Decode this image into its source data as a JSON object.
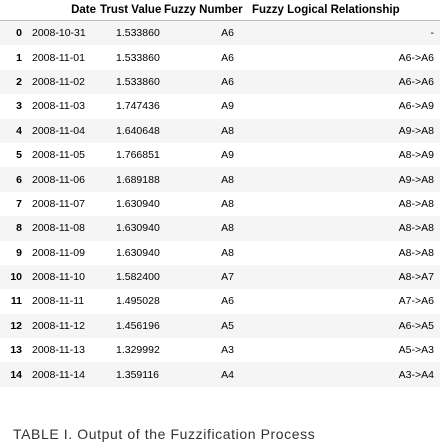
{
  "table": {
    "headers": [
      "",
      "Date",
      "Trust Value",
      "Fuzzy Number",
      "Fuzzy Logical Relationship"
    ],
    "rows": [
      {
        "index": "0",
        "date": "2008-10-31",
        "trust_value": "1.533860",
        "fuzzy_number": "A6",
        "flr": "-"
      },
      {
        "index": "1",
        "date": "2008-11-01",
        "trust_value": "1.533860",
        "fuzzy_number": "A6",
        "flr": "A6->A6"
      },
      {
        "index": "2",
        "date": "2008-11-02",
        "trust_value": "1.533860",
        "fuzzy_number": "A6",
        "flr": "A6->A6"
      },
      {
        "index": "3",
        "date": "2008-11-03",
        "trust_value": "1.747436",
        "fuzzy_number": "A9",
        "flr": "A6->A9"
      },
      {
        "index": "4",
        "date": "2008-11-04",
        "trust_value": "1.640648",
        "fuzzy_number": "A8",
        "flr": "A9->A8"
      },
      {
        "index": "5",
        "date": "2008-11-05",
        "trust_value": "1.766851",
        "fuzzy_number": "A9",
        "flr": "A8->A9"
      },
      {
        "index": "6",
        "date": "2008-11-06",
        "trust_value": "1.689188",
        "fuzzy_number": "A8",
        "flr": "A9->A8"
      },
      {
        "index": "7",
        "date": "2008-11-07",
        "trust_value": "1.630940",
        "fuzzy_number": "A8",
        "flr": "A8->A8"
      },
      {
        "index": "8",
        "date": "2008-11-08",
        "trust_value": "1.630940",
        "fuzzy_number": "A8",
        "flr": "A8->A8"
      },
      {
        "index": "9",
        "date": "2008-11-09",
        "trust_value": "1.630940",
        "fuzzy_number": "A8",
        "flr": "A8->A8"
      },
      {
        "index": "10",
        "date": "2008-11-10",
        "trust_value": "1.582400",
        "fuzzy_number": "A7",
        "flr": "A8->A7"
      },
      {
        "index": "11",
        "date": "2008-11-11",
        "trust_value": "1.495028",
        "fuzzy_number": "A6",
        "flr": "A7->A6"
      },
      {
        "index": "12",
        "date": "2008-11-12",
        "trust_value": "1.456196",
        "fuzzy_number": "A5",
        "flr": "A6->A5"
      },
      {
        "index": "13",
        "date": "2008-11-13",
        "trust_value": "1.329992",
        "fuzzy_number": "A3",
        "flr": "A5->A3"
      },
      {
        "index": "14",
        "date": "2008-11-14",
        "trust_value": "1.359116",
        "fuzzy_number": "A4",
        "flr": "A3->A4"
      }
    ]
  },
  "caption": "TABLE I. Output of the Fuzzification Process"
}
